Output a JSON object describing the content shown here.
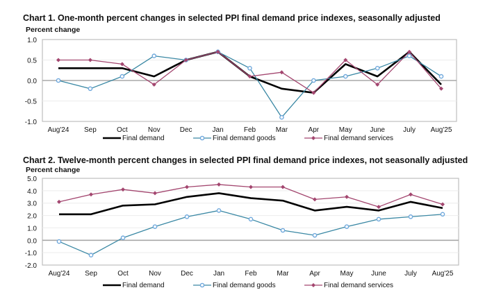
{
  "chart_data": [
    {
      "type": "line",
      "title": "Chart 1. One-month percent changes in selected PPI final demand price indexes, seasonally adjusted",
      "ylabel": "Percent change",
      "ylim": [
        -1.0,
        1.0
      ],
      "yticks": [
        "1.0",
        "0.5",
        "0.0",
        "-0.5",
        "-1.0"
      ],
      "categories": [
        "Aug'24",
        "Sep",
        "Oct",
        "Nov",
        "Dec",
        "Jan",
        "Feb",
        "Mar",
        "Apr",
        "May",
        "June",
        "July",
        "Aug'25"
      ],
      "grid": true,
      "legend": "bottom",
      "series": [
        {
          "name": "Final demand",
          "color": "#000000",
          "values": [
            0.3,
            0.3,
            0.3,
            0.1,
            0.5,
            0.7,
            0.1,
            -0.2,
            -0.3,
            0.4,
            0.1,
            0.7,
            -0.1
          ]
        },
        {
          "name": "Final demand goods",
          "color": "#3a88a4",
          "values": [
            0.0,
            -0.2,
            0.1,
            0.6,
            0.5,
            0.7,
            0.3,
            -0.9,
            0.0,
            0.1,
            0.3,
            0.6,
            0.1
          ]
        },
        {
          "name": "Final demand services",
          "color": "#a3466f",
          "values": [
            0.5,
            0.5,
            0.4,
            -0.1,
            0.5,
            0.7,
            0.1,
            0.2,
            -0.3,
            0.5,
            -0.1,
            0.7,
            -0.2
          ]
        }
      ]
    },
    {
      "type": "line",
      "title": "Chart 2. Twelve-month percent changes in selected PPI final demand price indexes, not seasonally adjusted",
      "ylabel": "Percent change",
      "ylim": [
        -2.0,
        5.0
      ],
      "yticks": [
        "5.0",
        "4.0",
        "3.0",
        "2.0",
        "1.0",
        "0.0",
        "-1.0",
        "-2.0"
      ],
      "categories": [
        "Aug'24",
        "Sep",
        "Oct",
        "Nov",
        "Dec",
        "Jan",
        "Feb",
        "Mar",
        "Apr",
        "May",
        "June",
        "July",
        "Aug'25"
      ],
      "grid": true,
      "legend": "bottom",
      "series": [
        {
          "name": "Final demand",
          "color": "#000000",
          "values": [
            2.1,
            2.1,
            2.8,
            2.9,
            3.5,
            3.8,
            3.4,
            3.2,
            2.4,
            2.7,
            2.4,
            3.1,
            2.6
          ]
        },
        {
          "name": "Final demand goods",
          "color": "#3a88a4",
          "values": [
            -0.1,
            -1.2,
            0.2,
            1.1,
            1.9,
            2.4,
            1.7,
            0.8,
            0.4,
            1.1,
            1.7,
            1.9,
            2.1
          ]
        },
        {
          "name": "Final demand services",
          "color": "#a3466f",
          "values": [
            3.1,
            3.7,
            4.1,
            3.8,
            4.3,
            4.5,
            4.3,
            4.3,
            3.3,
            3.5,
            2.7,
            3.7,
            2.9
          ]
        }
      ]
    }
  ]
}
